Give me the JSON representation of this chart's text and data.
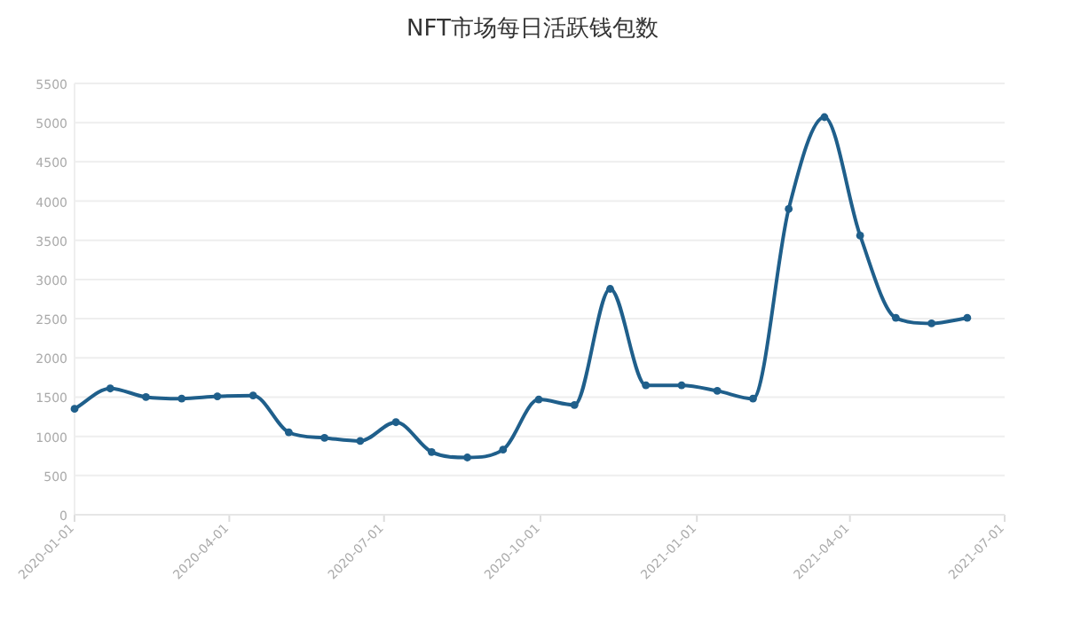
{
  "chart_data": {
    "type": "line",
    "title": "NFT市场每日活跃钱包数",
    "x": [
      "2020-01-01",
      "2020-01-22",
      "2020-02-12",
      "2020-03-04",
      "2020-03-25",
      "2020-04-15",
      "2020-05-06",
      "2020-05-27",
      "2020-06-17",
      "2020-07-08",
      "2020-07-29",
      "2020-08-19",
      "2020-09-09",
      "2020-09-30",
      "2020-10-21",
      "2020-11-11",
      "2020-12-02",
      "2020-12-23",
      "2021-01-13",
      "2021-02-03",
      "2021-02-24",
      "2021-03-17",
      "2021-04-07",
      "2021-04-28",
      "2021-05-19",
      "2021-06-09"
    ],
    "series": [
      {
        "color": "#1f5f8b",
        "values": [
          1350,
          1610,
          1500,
          1480,
          1510,
          1520,
          1050,
          980,
          940,
          1180,
          800,
          730,
          830,
          1470,
          1400,
          2880,
          1650,
          1650,
          1580,
          1480,
          3900,
          5070,
          3560,
          2510,
          2440,
          2510
        ]
      }
    ],
    "xlim": [
      "2020-01-01",
      "2021-07-01"
    ],
    "xticks": [
      "2020-01-01",
      "2020-04-01",
      "2020-07-01",
      "2020-10-01",
      "2021-01-01",
      "2021-04-01",
      "2021-07-01"
    ],
    "ylim": [
      0,
      5500
    ],
    "yticks": [
      0,
      500,
      1000,
      1500,
      2000,
      2500,
      3000,
      3500,
      4000,
      4500,
      5000,
      5500
    ],
    "grid": "y",
    "marker": "circle",
    "line_style": "solid"
  }
}
